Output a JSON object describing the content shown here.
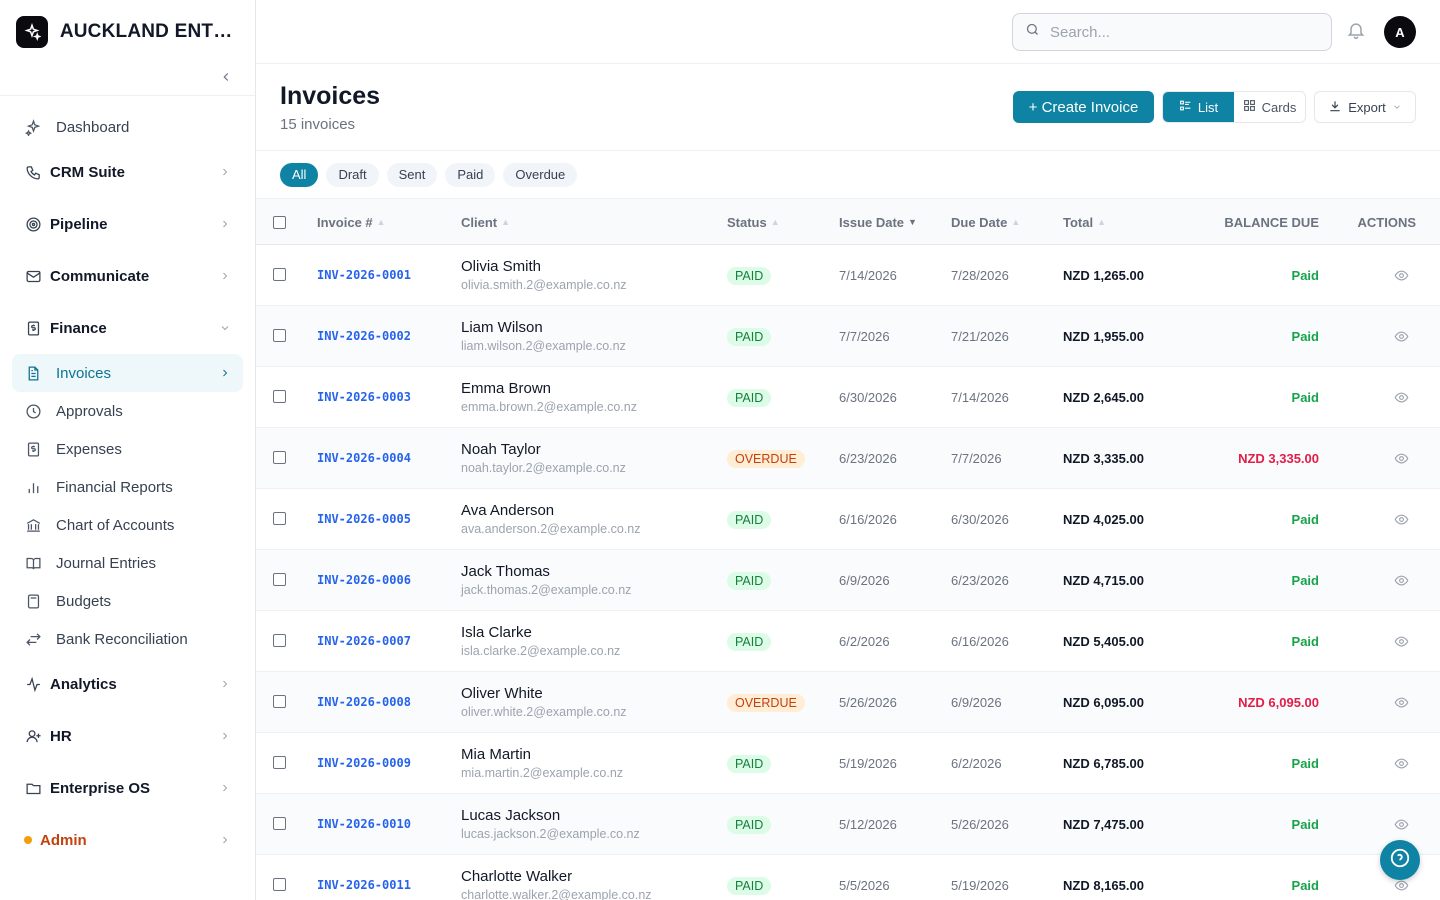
{
  "brand": {
    "name": "AUCKLAND ENTER..."
  },
  "nav": {
    "dashboard": "Dashboard",
    "crm": "CRM Suite",
    "pipeline": "Pipeline",
    "communicate": "Communicate",
    "finance": "Finance",
    "finance_items": [
      "Invoices",
      "Approvals",
      "Expenses",
      "Financial Reports",
      "Chart of Accounts",
      "Journal Entries",
      "Budgets",
      "Bank Reconciliation"
    ],
    "analytics": "Analytics",
    "hr": "HR",
    "enterprise_os": "Enterprise OS",
    "admin": "Admin"
  },
  "header": {
    "search_placeholder": "Search...",
    "avatar_initial": "A"
  },
  "page": {
    "title": "Invoices",
    "subtitle": "15 invoices",
    "create_label": "+ Create Invoice",
    "view_list": "List",
    "view_cards": "Cards",
    "export_label": "Export"
  },
  "filters": [
    "All",
    "Draft",
    "Sent",
    "Paid",
    "Overdue"
  ],
  "columns": {
    "invoice": "Invoice #",
    "client": "Client",
    "status": "Status",
    "issue": "Issue Date",
    "due": "Due Date",
    "total": "Total",
    "balance": "BALANCE DUE",
    "actions": "ACTIONS"
  },
  "rows": [
    {
      "inv": "INV-2026-0001",
      "name": "Olivia Smith",
      "email": "olivia.smith.2@example.co.nz",
      "status": "PAID",
      "issue": "7/14/2026",
      "due": "7/28/2026",
      "total": "NZD 1,265.00",
      "balance": "Paid"
    },
    {
      "inv": "INV-2026-0002",
      "name": "Liam Wilson",
      "email": "liam.wilson.2@example.co.nz",
      "status": "PAID",
      "issue": "7/7/2026",
      "due": "7/21/2026",
      "total": "NZD 1,955.00",
      "balance": "Paid"
    },
    {
      "inv": "INV-2026-0003",
      "name": "Emma Brown",
      "email": "emma.brown.2@example.co.nz",
      "status": "PAID",
      "issue": "6/30/2026",
      "due": "7/14/2026",
      "total": "NZD 2,645.00",
      "balance": "Paid"
    },
    {
      "inv": "INV-2026-0004",
      "name": "Noah Taylor",
      "email": "noah.taylor.2@example.co.nz",
      "status": "OVERDUE",
      "issue": "6/23/2026",
      "due": "7/7/2026",
      "total": "NZD 3,335.00",
      "balance": "NZD 3,335.00"
    },
    {
      "inv": "INV-2026-0005",
      "name": "Ava Anderson",
      "email": "ava.anderson.2@example.co.nz",
      "status": "PAID",
      "issue": "6/16/2026",
      "due": "6/30/2026",
      "total": "NZD 4,025.00",
      "balance": "Paid"
    },
    {
      "inv": "INV-2026-0006",
      "name": "Jack Thomas",
      "email": "jack.thomas.2@example.co.nz",
      "status": "PAID",
      "issue": "6/9/2026",
      "due": "6/23/2026",
      "total": "NZD 4,715.00",
      "balance": "Paid"
    },
    {
      "inv": "INV-2026-0007",
      "name": "Isla Clarke",
      "email": "isla.clarke.2@example.co.nz",
      "status": "PAID",
      "issue": "6/2/2026",
      "due": "6/16/2026",
      "total": "NZD 5,405.00",
      "balance": "Paid"
    },
    {
      "inv": "INV-2026-0008",
      "name": "Oliver White",
      "email": "oliver.white.2@example.co.nz",
      "status": "OVERDUE",
      "issue": "5/26/2026",
      "due": "6/9/2026",
      "total": "NZD 6,095.00",
      "balance": "NZD 6,095.00"
    },
    {
      "inv": "INV-2026-0009",
      "name": "Mia Martin",
      "email": "mia.martin.2@example.co.nz",
      "status": "PAID",
      "issue": "5/19/2026",
      "due": "6/2/2026",
      "total": "NZD 6,785.00",
      "balance": "Paid"
    },
    {
      "inv": "INV-2026-0010",
      "name": "Lucas Jackson",
      "email": "lucas.jackson.2@example.co.nz",
      "status": "PAID",
      "issue": "5/12/2026",
      "due": "5/26/2026",
      "total": "NZD 7,475.00",
      "balance": "Paid"
    },
    {
      "inv": "INV-2026-0011",
      "name": "Charlotte Walker",
      "email": "charlotte.walker.2@example.co.nz",
      "status": "PAID",
      "issue": "5/5/2026",
      "due": "5/19/2026",
      "total": "NZD 8,165.00",
      "balance": "Paid"
    }
  ],
  "colors": {
    "accent": "#0e83a3",
    "paid": "#16a34a",
    "overdue": "#e11d48",
    "link": "#2563eb"
  }
}
